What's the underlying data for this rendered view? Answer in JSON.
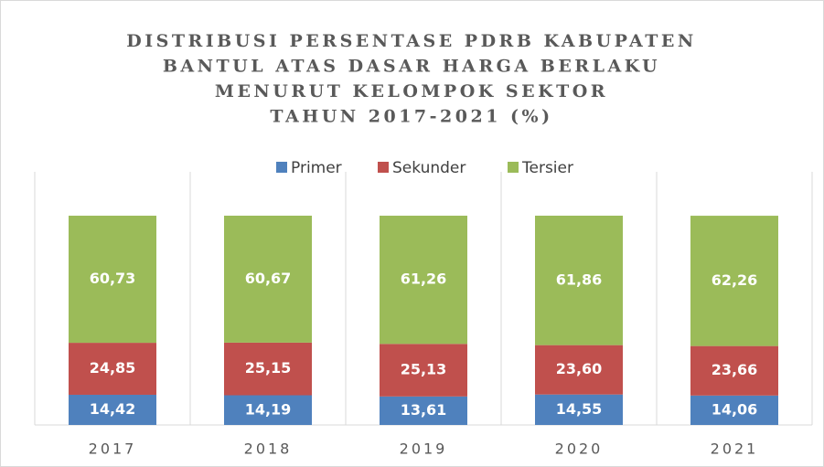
{
  "chart_data": {
    "type": "stacked_bar",
    "title": [
      "DISTRIBUSI PERSENTASE PDRB KABUPATEN",
      "BANTUL ATAS DASAR HARGA BERLAKU",
      "MENURUT KELOMPOK SEKTOR",
      "TAHUN 2017-2021 (%)"
    ],
    "categories": [
      "2017",
      "2018",
      "2019",
      "2020",
      "2021"
    ],
    "series": [
      {
        "name": "Primer",
        "color": "#4f81bd",
        "values": [
          14.42,
          14.19,
          13.61,
          14.55,
          14.06
        ],
        "value_labels": [
          "14,42",
          "14,19",
          "13,61",
          "14,55",
          "14,06"
        ]
      },
      {
        "name": "Sekunder",
        "color": "#c0504d",
        "values": [
          24.85,
          25.15,
          25.13,
          23.6,
          23.66
        ],
        "value_labels": [
          "24,85",
          "25,15",
          "25,13",
          "23,60",
          "23,66"
        ]
      },
      {
        "name": "Tersier",
        "color": "#9bbb59",
        "values": [
          60.73,
          60.67,
          61.26,
          61.86,
          62.26
        ],
        "value_labels": [
          "60,73",
          "60,67",
          "61,26",
          "61,86",
          "62,26"
        ]
      }
    ],
    "legend": "top"
  }
}
